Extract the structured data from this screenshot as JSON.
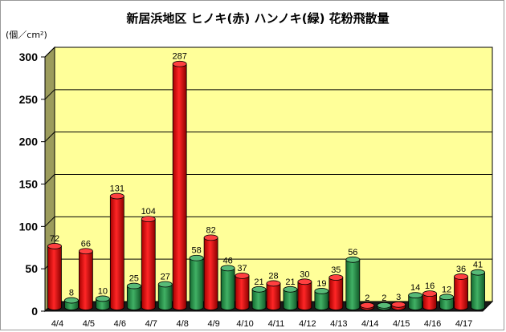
{
  "chart_data": {
    "type": "bar",
    "title": "新居浜地区 ヒノキ(赤) ハンノキ(緑) 花粉飛散量",
    "ylabel": "(個／cm²)",
    "xlabel": "",
    "ylim": [
      0,
      300
    ],
    "yticks": [
      0,
      50,
      100,
      150,
      200,
      250,
      300
    ],
    "grid": true,
    "legend": "none",
    "categories": [
      "4/4",
      "4/5",
      "4/6",
      "4/7",
      "4/8",
      "4/9",
      "4/10",
      "4/11",
      "4/12",
      "4/13",
      "4/14",
      "4/15",
      "4/16",
      "4/17"
    ],
    "series": [
      {
        "values": [
          72,
          66,
          131,
          104,
          287,
          82,
          37,
          28,
          30,
          35,
          2,
          3,
          16,
          36
        ],
        "color": "#ff0000"
      },
      {
        "values": [
          8,
          10,
          25,
          27,
          58,
          46,
          21,
          21,
          19,
          56,
          2,
          14,
          12,
          41
        ],
        "color": "#1fa34a"
      }
    ],
    "plot_background": "#ffff99",
    "wall_color": "#9c9c5c",
    "floor_color": "#1a1a1a"
  }
}
